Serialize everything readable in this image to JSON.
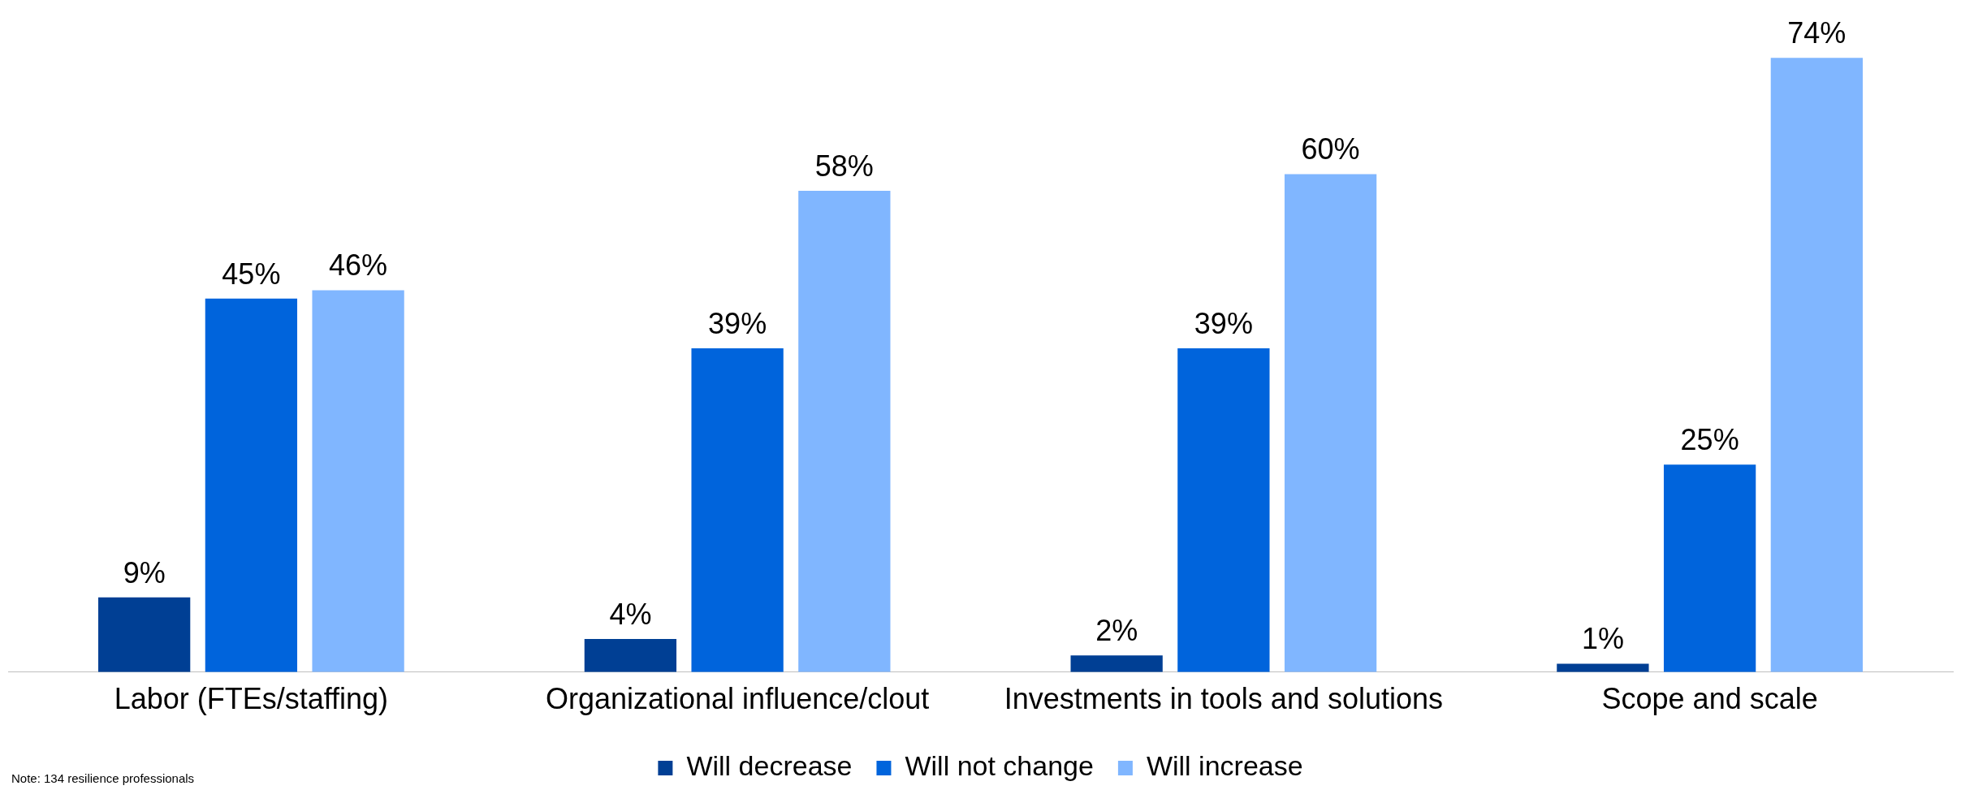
{
  "chart_data": {
    "type": "bar",
    "categories": [
      "Labor (FTEs/staffing)",
      "Organizational influence/clout",
      "Investments in tools and solutions",
      "Scope and scale"
    ],
    "series": [
      {
        "name": "Will decrease",
        "color": "#003f94",
        "values": [
          9,
          4,
          2,
          1
        ],
        "value_labels": [
          "9%",
          "4%",
          "2%",
          "1%"
        ]
      },
      {
        "name": "Will not change",
        "color": "#0064dc",
        "values": [
          45,
          39,
          39,
          25
        ],
        "value_labels": [
          "45%",
          "39%",
          "39%",
          "25%"
        ]
      },
      {
        "name": "Will increase",
        "color": "#80b6ff",
        "values": [
          46,
          58,
          60,
          74
        ],
        "value_labels": [
          "46%",
          "58%",
          "60%",
          "74%"
        ]
      }
    ],
    "legend": "bottom",
    "grid": false,
    "tick_labels": "x",
    "annotations": [
      "Note: 134 resilience professionals"
    ]
  }
}
